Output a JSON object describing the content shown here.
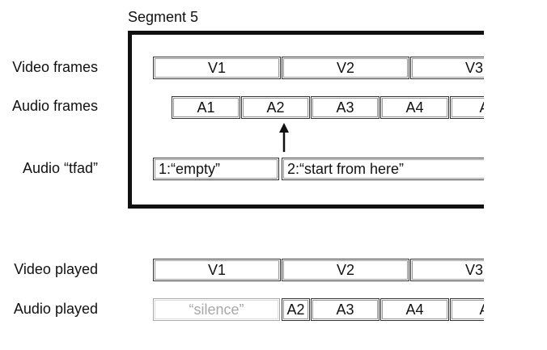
{
  "segment": {
    "title": "Segment 5"
  },
  "rows": {
    "video_frames": "Video frames",
    "audio_frames": "Audio frames",
    "audio_tfad": "Audio “tfad”",
    "video_played": "Video played",
    "audio_played": "Audio played"
  },
  "video_frames": [
    "V1",
    "V2",
    "V3"
  ],
  "audio_frames": [
    "A1",
    "A2",
    "A3",
    "A4",
    "A"
  ],
  "tfad": [
    "1:“empty”",
    "2:“start from here”"
  ],
  "video_played": [
    "V1",
    "V2",
    "V3"
  ],
  "audio_played": [
    "“silence”",
    "A2",
    "A3",
    "A4",
    "A"
  ]
}
